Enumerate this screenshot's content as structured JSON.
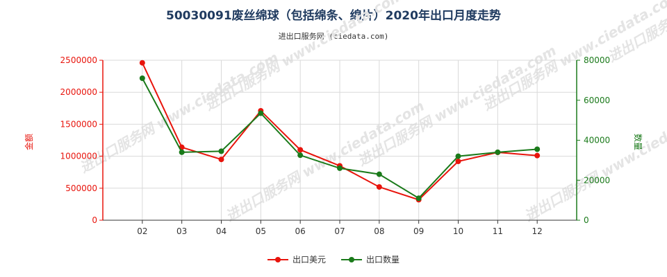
{
  "title": "50030091废丝绵球（包括绵条、绵片）2020年出口月度走势",
  "subtitle": "进出口服务网 (ciedata.com)",
  "watermark": "进出口服务网 www.ciedata.com",
  "chart_data": {
    "type": "line",
    "categories": [
      "02",
      "03",
      "04",
      "05",
      "06",
      "07",
      "08",
      "09",
      "10",
      "11",
      "12"
    ],
    "series": [
      {
        "name": "出口美元",
        "axis": "left",
        "color": "#e8140c",
        "values": [
          2460000,
          1140000,
          950000,
          1710000,
          1100000,
          850000,
          520000,
          320000,
          920000,
          1060000,
          1010000
        ]
      },
      {
        "name": "出口数量",
        "axis": "right",
        "color": "#1a7a1a",
        "values": [
          71000,
          34000,
          34500,
          53500,
          32500,
          26000,
          23000,
          11000,
          32000,
          34000,
          35500
        ]
      }
    ],
    "y_left": {
      "label": "金额",
      "min": 0,
      "max": 2500000,
      "ticks": [
        "0",
        "500000",
        "1000000",
        "1500000",
        "2000000",
        "2500000"
      ],
      "color": "#e8140c"
    },
    "y_right": {
      "label": "数量",
      "min": 0,
      "max": 80000,
      "ticks": [
        "0",
        "20000",
        "40000",
        "60000",
        "80000"
      ],
      "color": "#1a7a1a"
    },
    "grid": true,
    "legend_position": "bottom"
  }
}
